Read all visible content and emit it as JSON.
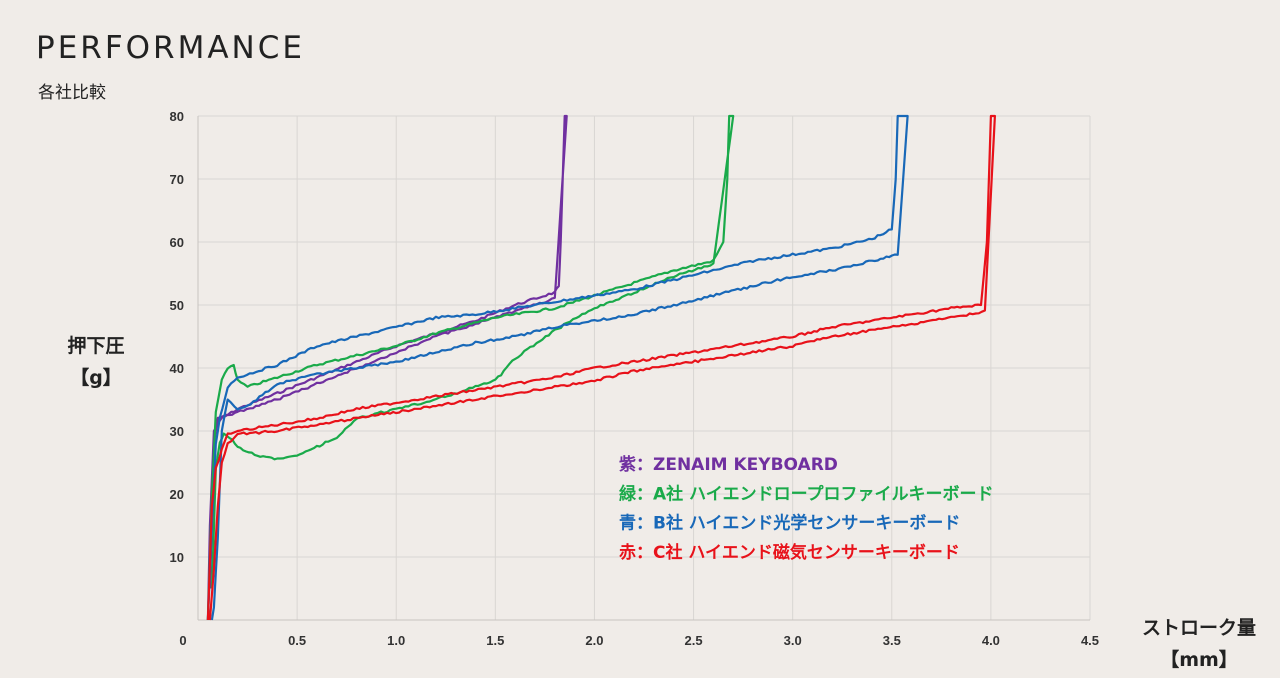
{
  "header": {
    "title": "PERFORMANCE",
    "subtitle": "各社比較"
  },
  "chart_data": {
    "type": "line",
    "title": "PERFORMANCE",
    "subtitle": "各社比較",
    "ylabel_line1": "押下圧",
    "ylabel_line2": "【g】",
    "xlabel_line1": "ストローク量",
    "xlabel_line2": "【mm】",
    "xlim": [
      0,
      4.5
    ],
    "ylim": [
      0,
      80
    ],
    "xticks": [
      "0",
      "0.5",
      "1.0",
      "1.5",
      "2.0",
      "2.5",
      "3.0",
      "3.5",
      "4.0",
      "4.5"
    ],
    "xtick_values": [
      0,
      0.5,
      1.0,
      1.5,
      2.0,
      2.5,
      3.0,
      3.5,
      4.0,
      4.5
    ],
    "yticks": [
      "10",
      "20",
      "30",
      "40",
      "50",
      "60",
      "70",
      "80"
    ],
    "ytick_values": [
      10,
      20,
      30,
      40,
      50,
      60,
      70,
      80
    ],
    "grid": true,
    "legend_position": "center-right",
    "series": [
      {
        "name": "ZENAIM KEYBOARD",
        "legend_label": "紫：ZENAIM KEYBOARD",
        "color": "#7030a0",
        "x": [
          0.05,
          0.06,
          0.08,
          0.12,
          0.2,
          0.4,
          0.6,
          0.8,
          1.0,
          1.2,
          1.4,
          1.6,
          1.8,
          1.82,
          1.83,
          1.84,
          1.85,
          1.86,
          1.8,
          1.6,
          1.4,
          1.2,
          1.0,
          0.8,
          0.6,
          0.4,
          0.2,
          0.1,
          0.08,
          0.07,
          0.06
        ],
        "y": [
          0,
          15,
          30,
          32,
          33.5,
          36,
          38.5,
          41,
          43.5,
          45.5,
          47.5,
          50,
          52,
          53,
          60,
          70,
          80,
          80,
          51,
          49,
          47,
          45,
          42.5,
          40,
          37.5,
          35,
          33,
          32,
          28,
          15,
          5
        ]
      },
      {
        "name": "A社 ハイエンドロープロファイルキーボード",
        "legend_label": "緑：A社 ハイエンドロープロファイルキーボード",
        "color": "#1aaa4a",
        "x": [
          0.05,
          0.07,
          0.09,
          0.12,
          0.15,
          0.18,
          0.2,
          0.25,
          0.3,
          0.4,
          0.6,
          0.8,
          1.0,
          1.2,
          1.5,
          1.8,
          2.0,
          2.2,
          2.4,
          2.6,
          2.65,
          2.67,
          2.68,
          2.7,
          2.6,
          2.4,
          2.2,
          2.0,
          1.8,
          1.6,
          1.5,
          1.4,
          1.2,
          1.0,
          0.8,
          0.7,
          0.6,
          0.5,
          0.4,
          0.3,
          0.2,
          0.16,
          0.13,
          0.11,
          0.09,
          0.07
        ],
        "y": [
          0,
          20,
          33,
          38,
          40,
          40.5,
          38,
          37,
          37.5,
          38.5,
          40.5,
          42,
          43.5,
          45.5,
          48,
          49.5,
          51.5,
          53.5,
          55.5,
          57,
          60,
          70,
          80,
          80,
          56.5,
          54.5,
          52,
          49.5,
          46,
          41.5,
          38,
          37,
          35,
          33.5,
          32,
          29,
          27.5,
          26,
          25.5,
          26,
          27.5,
          29,
          29.5,
          28,
          24,
          5
        ]
      },
      {
        "name": "B社 ハイエンド光学センサーキーボード",
        "legend_label": "青：B社 ハイエンド光学センサーキーボード",
        "color": "#1868b8",
        "x": [
          0.05,
          0.07,
          0.09,
          0.11,
          0.15,
          0.2,
          0.4,
          0.6,
          0.8,
          1.0,
          1.2,
          1.4,
          1.6,
          1.8,
          2.0,
          2.2,
          2.4,
          2.6,
          2.8,
          3.0,
          3.2,
          3.4,
          3.5,
          3.52,
          3.53,
          3.55,
          3.58,
          3.53,
          3.4,
          3.2,
          3.0,
          2.8,
          2.6,
          2.4,
          2.2,
          2.0,
          1.8,
          1.6,
          1.4,
          1.2,
          1.0,
          0.8,
          0.6,
          0.4,
          0.25,
          0.2,
          0.15,
          0.12,
          0.1,
          0.08,
          0.07
        ],
        "y": [
          0,
          15,
          28,
          32,
          37,
          38.5,
          40.5,
          43.5,
          45,
          46.5,
          48,
          48.5,
          49.5,
          50.5,
          51.5,
          52.5,
          54,
          55.5,
          57,
          58,
          59,
          60.5,
          62,
          70,
          80,
          80,
          80,
          58,
          57,
          55.5,
          54.5,
          53,
          51.5,
          50,
          48.5,
          47.5,
          46.5,
          45,
          44,
          42.5,
          41,
          40,
          39,
          37.5,
          34,
          33.5,
          35,
          30,
          13,
          2,
          0
        ]
      },
      {
        "name": "C社 ハイエンド磁気センサーキーボード",
        "legend_label": "赤：C社 ハイエンド磁気センサーキーボード",
        "color": "#e8121a",
        "x": [
          0.05,
          0.07,
          0.09,
          0.12,
          0.15,
          0.2,
          0.4,
          0.6,
          0.8,
          1.0,
          1.2,
          1.4,
          1.6,
          1.8,
          2.0,
          2.2,
          2.4,
          2.6,
          2.8,
          3.0,
          3.2,
          3.4,
          3.6,
          3.8,
          3.95,
          3.98,
          3.99,
          4.0,
          4.02,
          3.97,
          3.8,
          3.6,
          3.4,
          3.2,
          3.0,
          2.8,
          2.6,
          2.4,
          2.2,
          2.0,
          1.8,
          1.6,
          1.4,
          1.2,
          1.0,
          0.8,
          0.6,
          0.4,
          0.2,
          0.15,
          0.12,
          0.1,
          0.08,
          0.06
        ],
        "y": [
          0,
          18,
          24,
          27,
          29.5,
          30,
          31,
          32,
          33.5,
          34.5,
          35.5,
          36.5,
          37.5,
          38.5,
          40,
          41,
          42,
          43,
          44,
          45,
          46.5,
          47.5,
          48.5,
          49.5,
          50,
          60,
          70,
          80,
          80,
          49,
          48,
          47,
          46,
          45,
          43.5,
          42.5,
          41.5,
          40.5,
          39.5,
          38,
          37,
          36,
          35,
          34,
          33,
          32,
          31,
          30,
          29.5,
          28,
          25,
          18,
          8,
          0
        ]
      }
    ]
  }
}
